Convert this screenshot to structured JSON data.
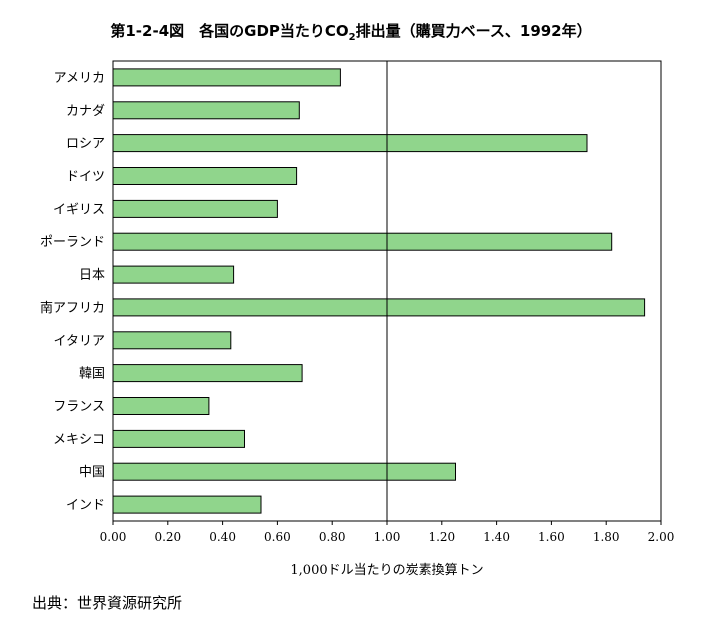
{
  "title_main": "第1-2-4図　各国のGDP当たりCO",
  "title_sub": "2",
  "title_rest": "排出量（購買力ベース、1992年）",
  "source": "出典：世界資源研究所",
  "chart_data": {
    "type": "bar",
    "orientation": "horizontal",
    "categories": [
      "アメリカ",
      "カナダ",
      "ロシア",
      "ドイツ",
      "イギリス",
      "ポーランド",
      "日本",
      "南アフリカ",
      "イタリア",
      "韓国",
      "フランス",
      "メキシコ",
      "中国",
      "インド"
    ],
    "values": [
      0.83,
      0.68,
      1.73,
      0.67,
      0.6,
      1.82,
      0.44,
      1.94,
      0.43,
      0.69,
      0.35,
      0.48,
      1.25,
      0.54
    ],
    "xlabel": "1,000ドル当たりの炭素換算トン",
    "ylabel": "",
    "xlim": [
      0.0,
      2.0
    ],
    "xticks": [
      "0.00",
      "0.20",
      "0.40",
      "0.60",
      "0.80",
      "1.00",
      "1.20",
      "1.40",
      "1.60",
      "1.80",
      "2.00"
    ],
    "reference_line": 1.0,
    "grid": false,
    "bar_color": "#90d58c"
  }
}
